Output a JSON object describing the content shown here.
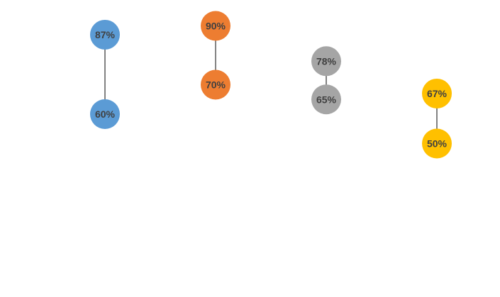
{
  "chart_data": {
    "type": "scatter",
    "subtype": "dumbbell",
    "title": "",
    "xlabel": "",
    "ylabel": "",
    "ylim": [
      0,
      1
    ],
    "grid": false,
    "legend": "none",
    "series": [
      {
        "color": "#5B9BD5",
        "values": [
          0.87,
          0.6
        ],
        "labels": [
          "87%",
          "60%"
        ]
      },
      {
        "color": "#ED7D31",
        "values": [
          0.9,
          0.7
        ],
        "labels": [
          "90%",
          "70%"
        ]
      },
      {
        "color": "#A5A5A5",
        "values": [
          0.78,
          0.65
        ],
        "labels": [
          "78%",
          "65%"
        ]
      },
      {
        "color": "#FFC000",
        "values": [
          0.67,
          0.5
        ],
        "labels": [
          "67%",
          "50%"
        ]
      }
    ]
  }
}
